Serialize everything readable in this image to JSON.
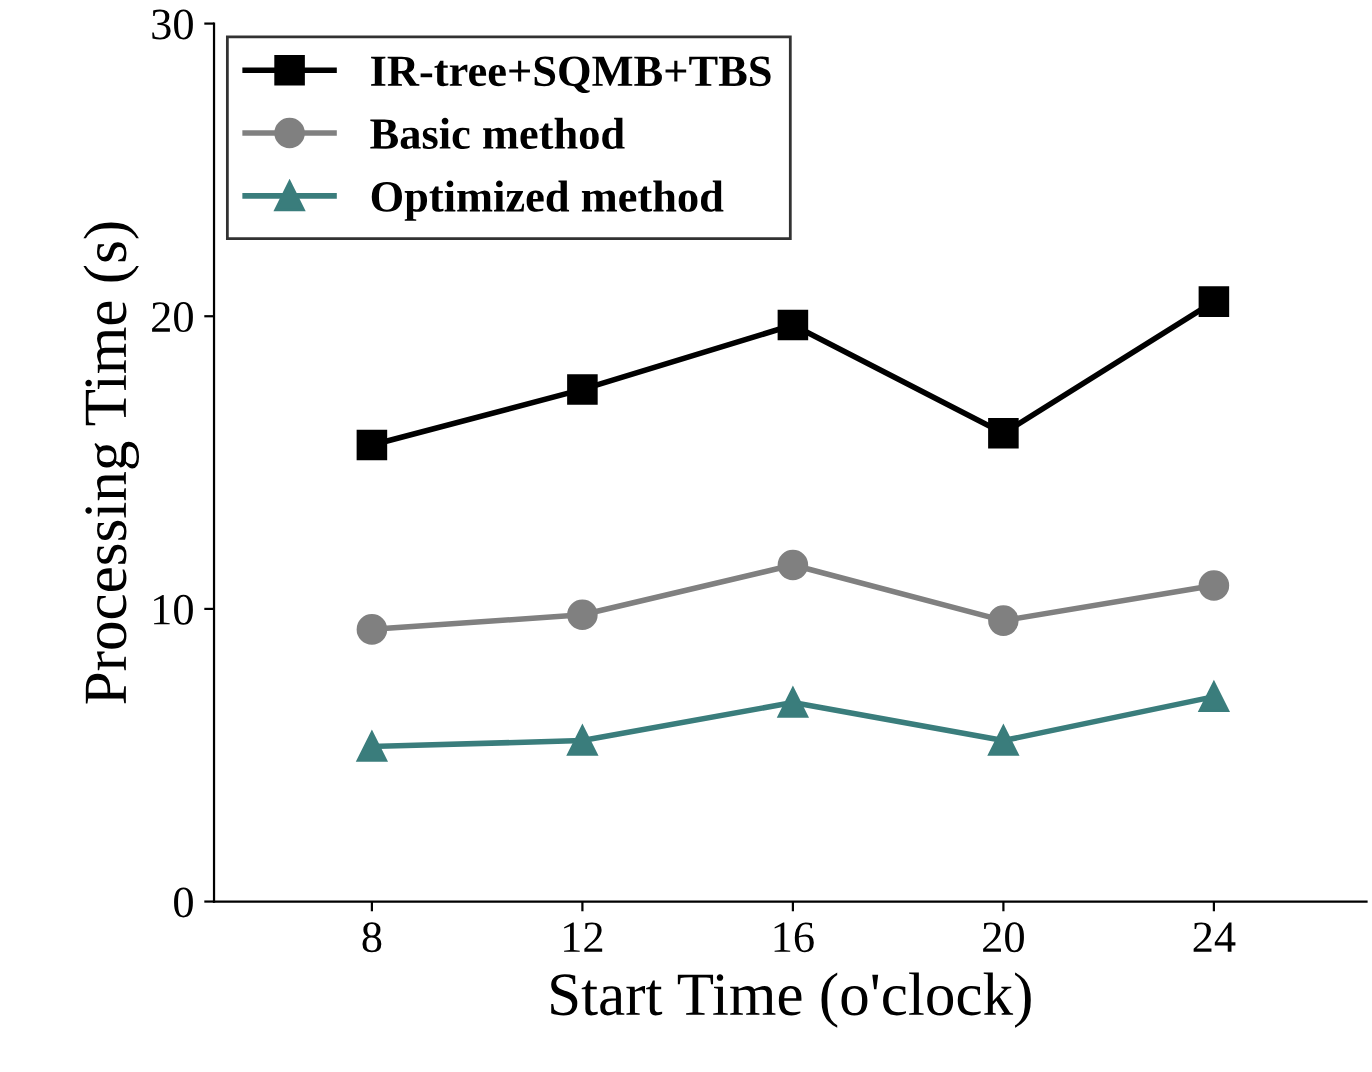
{
  "chart_data": {
    "type": "line",
    "xlabel": "Start Time (o'clock)",
    "ylabel": "Processing Time (s)",
    "x": [
      8,
      12,
      16,
      20,
      24
    ],
    "series": [
      {
        "name": "IR-tree+SQMB+TBS",
        "color": "#000000",
        "marker": "square",
        "values": [
          15.6,
          17.5,
          19.7,
          16.0,
          20.5
        ]
      },
      {
        "name": "Basic method",
        "color": "#808080",
        "marker": "circle",
        "values": [
          9.3,
          9.8,
          11.5,
          9.6,
          10.8
        ]
      },
      {
        "name": "Optimized method",
        "color": "#3a7d7c",
        "marker": "triangle",
        "values": [
          5.3,
          5.5,
          6.8,
          5.5,
          7.0
        ]
      }
    ],
    "xlim": [
      5,
      26.9
    ],
    "xticks": [
      8,
      12,
      16,
      20,
      24
    ],
    "ylim": [
      0,
      30
    ],
    "yticks": [
      0,
      10,
      20,
      30
    ],
    "grid": false,
    "legend": "top left",
    "line_style": "solid"
  }
}
